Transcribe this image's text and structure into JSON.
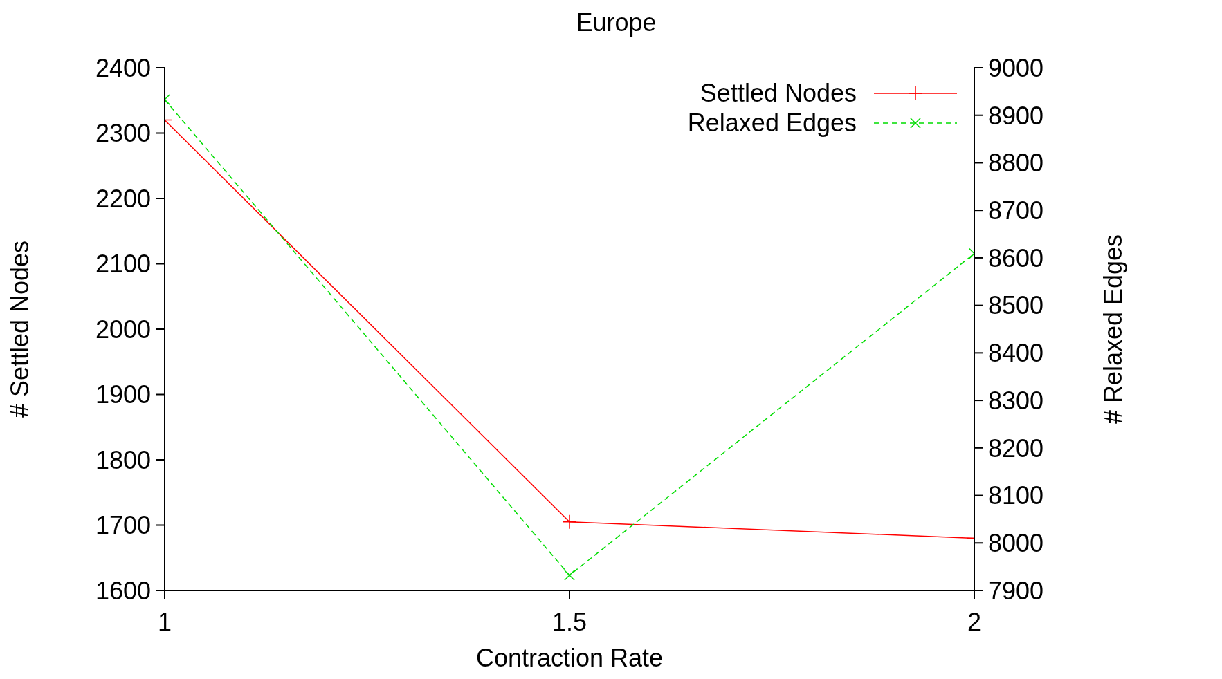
{
  "chart_data": {
    "type": "line",
    "title": "Europe",
    "xlabel": "Contraction Rate",
    "ylabel": "# Settled Nodes",
    "y2label": "# Relaxed Edges",
    "x": [
      1,
      1.5,
      2
    ],
    "series": [
      {
        "name": "Settled Nodes",
        "color": "#ff0000",
        "values": [
          2320,
          1705,
          1680
        ],
        "marker": "cross",
        "line_style": "solid"
      },
      {
        "name": "Relaxed Edges",
        "color": "#00dd00",
        "values": [
          8933,
          7932,
          8609
        ],
        "axis": "y2",
        "marker": "cross",
        "line_style": "dashed"
      }
    ],
    "xlim": [
      1,
      2
    ],
    "xticks": [
      1,
      1.5,
      2
    ],
    "ylim": [
      1600,
      2400
    ],
    "yticks": [
      1600,
      1700,
      1800,
      1900,
      2000,
      2100,
      2200,
      2300,
      2400
    ],
    "y2lim": [
      7900,
      9000
    ],
    "y2ticks": [
      7900,
      8000,
      8100,
      8200,
      8300,
      8400,
      8500,
      8600,
      8700,
      8800,
      8900,
      9000
    ],
    "legend": "top right"
  }
}
